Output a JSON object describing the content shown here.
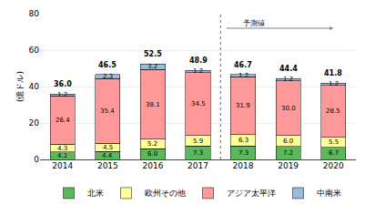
{
  "chart_data": {
    "type": "bar",
    "stacked": true,
    "categories": [
      "2014",
      "2015",
      "2016",
      "2017",
      "2018",
      "2019",
      "2020"
    ],
    "series": [
      {
        "name": "北米",
        "color": "#5cb85c",
        "values": [
          4.1,
          4.4,
          6.0,
          7.3,
          7.3,
          7.2,
          6.7
        ],
        "value_labels": [
          "4.1",
          "4.4",
          "6.0",
          "7.3",
          "7.3",
          "7.2",
          "6.7"
        ]
      },
      {
        "name": "欧州その他",
        "color": "#ffff99",
        "values": [
          4.3,
          4.5,
          5.2,
          5.9,
          6.3,
          6.0,
          5.5
        ],
        "value_labels": [
          "4.3",
          "4.5",
          "5.2",
          "5.9",
          "6.3",
          "6.0",
          "5.5"
        ]
      },
      {
        "name": "アジア太平洋",
        "color": "#ff9999",
        "values": [
          26.4,
          35.4,
          38.1,
          34.5,
          31.9,
          30.0,
          28.5
        ],
        "value_labels": [
          "26.4",
          "35.4",
          "38.1",
          "34.5",
          "31.9",
          "30.0",
          "28.5"
        ]
      },
      {
        "name": "中南米",
        "color": "#99bbdd",
        "values": [
          1.2,
          2.3,
          3.2,
          1.2,
          1.2,
          1.2,
          1.2
        ],
        "value_labels": [
          "1.2",
          "2.3",
          "3.2",
          "1.2",
          "1.2",
          "1.2",
          "1.2"
        ]
      }
    ],
    "totals": [
      36.0,
      46.5,
      52.5,
      48.9,
      46.7,
      44.4,
      41.8
    ],
    "total_labels": [
      "36.0",
      "46.5",
      "52.5",
      "48.9",
      "46.7",
      "44.4",
      "41.8"
    ],
    "ylabel": "(億ドル)",
    "ylim": [
      0,
      80
    ],
    "yticks": [
      0,
      20,
      40,
      60,
      80
    ],
    "grid": true,
    "legend": "bottom",
    "data_labels": true,
    "forecast": {
      "label": "予測値",
      "from": "2018"
    }
  }
}
